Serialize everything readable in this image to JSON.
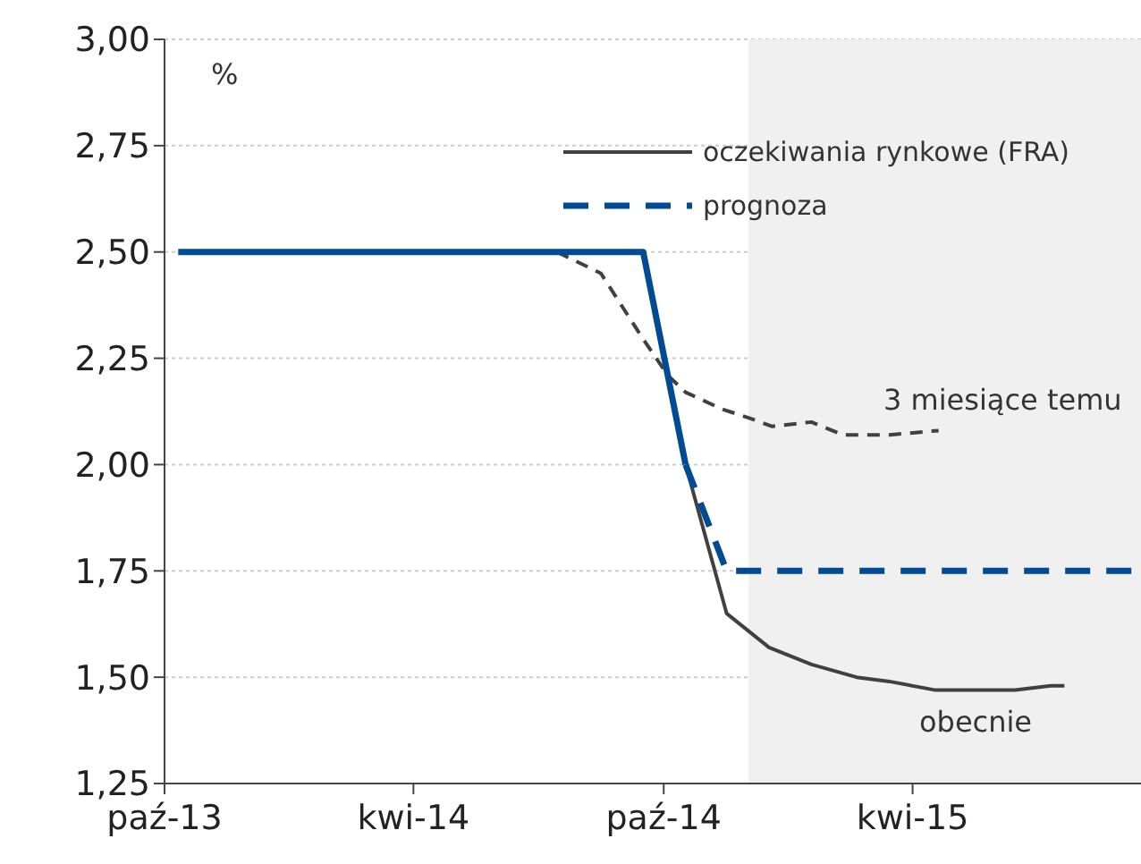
{
  "chart_data": {
    "type": "line",
    "legend": "top right",
    "grid": "y",
    "marker": "none",
    "xlim": [
      "2013-10-01",
      "2015-09-15"
    ],
    "xticks": [
      {
        "value": "2013-10-01",
        "label": "paź-13"
      },
      {
        "value": "2014-04-01",
        "label": "kwi-14"
      },
      {
        "value": "2014-10-01",
        "label": "paź-14"
      },
      {
        "value": "2015-04-01",
        "label": "kwi-15"
      }
    ],
    "ylim": [
      1.25,
      3
    ],
    "yticks": [
      {
        "value": 1.25,
        "label": "1,25"
      },
      {
        "value": 1.5,
        "label": "1,50"
      },
      {
        "value": 1.75,
        "label": "1,75"
      },
      {
        "value": 2,
        "label": "2,00"
      },
      {
        "value": 2.25,
        "label": "2,25"
      },
      {
        "value": 2.5,
        "label": "2,50"
      },
      {
        "value": 2.75,
        "label": "2,75"
      },
      {
        "value": 3,
        "label": "3,00"
      }
    ],
    "bands": [
      {
        "axis": "x",
        "from": "2014-12-02",
        "to": "2015-09-15",
        "color": "#f0f0f0"
      }
    ],
    "annotations": [
      "%",
      "3 miesiące temu",
      "obecnie"
    ],
    "series": [
      {
        "color": "#404040",
        "line_style": "dashed",
        "x": [
          "2014-07-15",
          "2014-08-16",
          "2014-09-15",
          "2014-10-04",
          "2014-10-17",
          "2014-11-13",
          "2014-12-02",
          "2014-12-19",
          "2015-01-17",
          "2015-02-09",
          "2015-03-15",
          "2015-04-20"
        ],
        "values": [
          2.5,
          2.45,
          2.3,
          2.21,
          2.17,
          2.13,
          2.11,
          2.09,
          2.1,
          2.07,
          2.07,
          2.08
        ]
      },
      {
        "name": "oczekiwania rynkowe (FRA)",
        "color": "#404040",
        "line_style": "solid",
        "x": [
          "2014-10-17",
          "2014-11-16",
          "2014-12-17",
          "2015-01-17",
          "2015-02-19",
          "2015-03-15",
          "2015-04-17",
          "2015-05-15",
          "2015-06-15",
          "2015-07-11",
          "2015-07-21"
        ],
        "values": [
          2.0,
          1.65,
          1.57,
          1.53,
          1.5,
          1.49,
          1.47,
          1.47,
          1.47,
          1.48,
          1.48
        ]
      },
      {
        "color": "#004b93",
        "line_style": "solid",
        "x": [
          "2013-10-11",
          "2014-09-16",
          "2014-10-17"
        ],
        "values": [
          2.5,
          2.5,
          2.0
        ]
      },
      {
        "name": "prognoza",
        "color": "#004b93",
        "line_style": "dashed",
        "x": [
          "2014-10-17",
          "2014-11-16",
          "2015-09-15"
        ],
        "values": [
          2.0,
          1.75,
          1.75
        ]
      }
    ]
  }
}
